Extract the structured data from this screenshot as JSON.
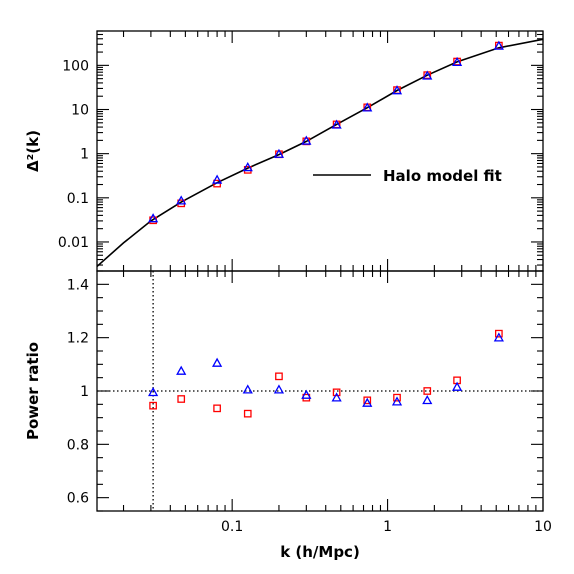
{
  "chart_data": [
    {
      "type": "line",
      "panel": "top",
      "xlabel": "",
      "ylabel": "Δ²(k)",
      "xscale": "log",
      "yscale": "log",
      "xlim": [
        0.0135,
        10
      ],
      "ylim": [
        0.0022,
        600
      ],
      "x_ticks": [
        {
          "value": 0.1,
          "label": "0.1"
        },
        {
          "value": 1,
          "label": "1"
        },
        {
          "value": 10,
          "label": "10"
        }
      ],
      "y_ticks": [
        {
          "value": 0.01,
          "label": "0.01"
        },
        {
          "value": 0.1,
          "label": "0.1"
        },
        {
          "value": 1,
          "label": "1"
        },
        {
          "value": 10,
          "label": "10"
        },
        {
          "value": 100,
          "label": "100"
        }
      ],
      "legend": {
        "label": "Halo model fit",
        "placement": "center-right"
      },
      "series": [
        {
          "style": "line",
          "color": "#000000",
          "x": [
            0.0135,
            0.02,
            0.03,
            0.047,
            0.08,
            0.126,
            0.2,
            0.3,
            0.47,
            0.74,
            1.15,
            1.8,
            2.8,
            5.2,
            10
          ],
          "y": [
            0.0028,
            0.0095,
            0.03,
            0.08,
            0.22,
            0.47,
            0.95,
            1.9,
            4.6,
            11,
            27,
            60,
            120,
            250,
            390
          ]
        },
        {
          "style": "markers",
          "marker": "square",
          "color": "#ff0000",
          "x": [
            0.031,
            0.047,
            0.08,
            0.126,
            0.2,
            0.3,
            0.47,
            0.74,
            1.15,
            1.8,
            2.8,
            5.2
          ],
          "y": [
            0.031,
            0.075,
            0.21,
            0.43,
            0.97,
            1.9,
            4.6,
            11.2,
            27.5,
            60,
            122,
            280
          ]
        },
        {
          "style": "markers",
          "marker": "triangle",
          "color": "#0000ff",
          "x": [
            0.031,
            0.047,
            0.08,
            0.126,
            0.2,
            0.3,
            0.47,
            0.74,
            1.15,
            1.8,
            2.8,
            5.2
          ],
          "y": [
            0.034,
            0.086,
            0.255,
            0.49,
            0.98,
            1.95,
            4.5,
            11,
            27,
            58,
            118,
            275
          ]
        }
      ]
    },
    {
      "type": "scatter",
      "panel": "bottom",
      "xlabel": "k (h/Mpc)",
      "ylabel": "Power ratio",
      "xscale": "log",
      "xlim": [
        0.0135,
        10
      ],
      "ylim": [
        0.55,
        1.45
      ],
      "x_ticks": [
        {
          "value": 0.1,
          "label": "0.1"
        },
        {
          "value": 1,
          "label": "1"
        },
        {
          "value": 10,
          "label": "10"
        }
      ],
      "y_ticks": [
        {
          "value": 0.6,
          "label": "0.6"
        },
        {
          "value": 0.8,
          "label": "0.8"
        },
        {
          "value": 1,
          "label": "1"
        },
        {
          "value": 1.2,
          "label": "1.2"
        },
        {
          "value": 1.4,
          "label": "1.4"
        }
      ],
      "reference_lines": {
        "horizontal_y": 1,
        "vertical_x": 0.031,
        "style": "dotted"
      },
      "series": [
        {
          "style": "markers",
          "marker": "square",
          "color": "#ff0000",
          "x": [
            0.031,
            0.047,
            0.08,
            0.126,
            0.2,
            0.3,
            0.47,
            0.74,
            1.15,
            1.8,
            2.8,
            5.2
          ],
          "y": [
            0.945,
            0.97,
            0.935,
            0.915,
            1.055,
            0.975,
            0.995,
            0.965,
            0.975,
            1.0,
            1.04,
            1.215
          ]
        },
        {
          "style": "markers",
          "marker": "triangle",
          "color": "#0000ff",
          "x": [
            0.031,
            0.047,
            0.08,
            0.126,
            0.2,
            0.3,
            0.47,
            0.74,
            1.15,
            1.8,
            2.8,
            5.2
          ],
          "y": [
            0.995,
            1.075,
            1.105,
            1.005,
            1.005,
            0.985,
            0.975,
            0.955,
            0.96,
            0.965,
            1.015,
            1.2
          ]
        }
      ]
    }
  ]
}
